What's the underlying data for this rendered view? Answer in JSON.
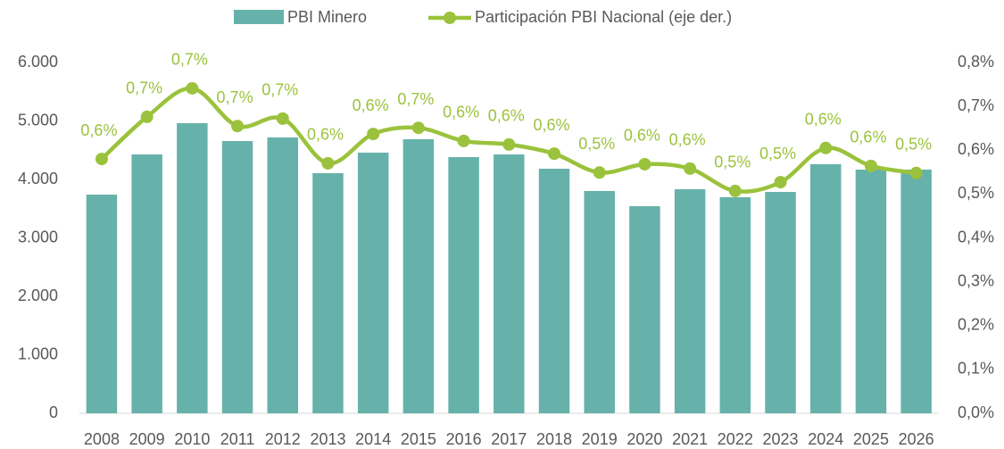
{
  "chart_data": {
    "type": "bar_line",
    "categories": [
      "2008",
      "2009",
      "2010",
      "2011",
      "2012",
      "2013",
      "2014",
      "2015",
      "2016",
      "2017",
      "2018",
      "2019",
      "2020",
      "2021",
      "2022",
      "2023",
      "2024",
      "2025",
      "2026"
    ],
    "series": [
      {
        "name": "PBI Minero",
        "type": "bar",
        "color": "#66b2aa",
        "values": [
          3740,
          4427,
          4962,
          4656,
          4718,
          4107,
          4458,
          4687,
          4382,
          4427,
          4183,
          3802,
          3542,
          3832,
          3695,
          3786,
          4260,
          4168,
          4168
        ]
      },
      {
        "name": "Participación PBI Nacional (eje der.)",
        "type": "line",
        "axis": "y2",
        "color": "#9bc23c",
        "values": [
          0.58,
          0.676,
          0.741,
          0.655,
          0.672,
          0.57,
          0.637,
          0.651,
          0.621,
          0.613,
          0.592,
          0.549,
          0.568,
          0.558,
          0.507,
          0.527,
          0.605,
          0.564,
          0.548
        ],
        "value_labels": [
          "0,6%",
          "0,7%",
          "0,7%",
          "0,7%",
          "0,7%",
          "0,6%",
          "0,6%",
          "0,7%",
          "0,6%",
          "0,6%",
          "0,6%",
          "0,5%",
          "0,6%",
          "0,6%",
          "0,5%",
          "0,5%",
          "0,6%",
          "0,6%",
          "0,5%"
        ]
      }
    ],
    "ylim": [
      0,
      6000
    ],
    "yticks": [
      0,
      {
        "value": 1000,
        "label": "1.000"
      },
      {
        "value": 2000,
        "label": "2.000"
      },
      {
        "value": 3000,
        "label": "3.000"
      },
      {
        "value": 4000,
        "label": "4.000"
      },
      {
        "value": 5000,
        "label": "5.000"
      },
      {
        "value": 6000,
        "label": "6.000"
      }
    ],
    "y2lim": [
      0,
      0.8
    ],
    "y2ticks": [
      {
        "value": 0,
        "label": "0,0%"
      },
      {
        "value": 0.1,
        "label": "0,1%"
      },
      {
        "value": 0.2,
        "label": "0,2%"
      },
      {
        "value": 0.3,
        "label": "0,3%"
      },
      {
        "value": 0.4,
        "label": "0,4%"
      },
      {
        "value": 0.5,
        "label": "0,5%"
      },
      {
        "value": 0.6,
        "label": "0,6%"
      },
      {
        "value": 0.7,
        "label": "0,7%"
      },
      {
        "value": 0.8,
        "label": "0,8%"
      }
    ],
    "grid": false,
    "legend": "top"
  }
}
